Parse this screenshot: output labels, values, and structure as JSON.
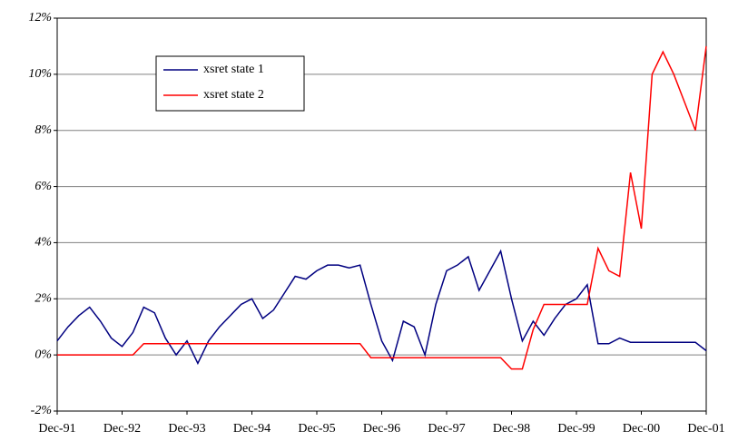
{
  "chart_data": {
    "type": "line",
    "categories": [
      "Dec-91",
      null,
      null,
      null,
      null,
      null,
      "Dec-92",
      null,
      null,
      null,
      null,
      null,
      "Dec-93",
      null,
      null,
      null,
      null,
      null,
      "Dec-94",
      null,
      null,
      null,
      null,
      null,
      "Dec-95",
      null,
      null,
      null,
      null,
      null,
      "Dec-96",
      null,
      null,
      null,
      null,
      null,
      "Dec-97",
      null,
      null,
      null,
      null,
      null,
      "Dec-98",
      null,
      null,
      null,
      null,
      null,
      "Dec-99",
      null,
      null,
      null,
      null,
      null,
      "Dec-00",
      null,
      null,
      null,
      null,
      null,
      "Dec-01"
    ],
    "series": [
      {
        "name": "xsret state 1",
        "color": "#000080",
        "values": [
          0.5,
          1.0,
          1.4,
          1.7,
          1.2,
          0.6,
          0.3,
          0.8,
          1.7,
          1.5,
          0.6,
          0.0,
          0.5,
          -0.3,
          0.5,
          1.0,
          1.4,
          1.8,
          2.0,
          1.3,
          1.6,
          2.2,
          2.8,
          2.7,
          3.0,
          3.2,
          3.2,
          3.1,
          3.2,
          1.8,
          0.5,
          -0.2,
          1.2,
          1.0,
          0.0,
          1.8,
          3.0,
          3.2,
          3.5,
          2.3,
          3.0,
          3.7,
          2.0,
          0.5,
          1.2,
          0.7,
          1.3,
          1.8,
          2.0,
          2.5,
          0.4,
          0.4,
          0.6,
          0.45,
          0.45,
          0.45,
          0.45,
          0.45,
          0.45,
          0.45,
          0.15
        ]
      },
      {
        "name": "xsret state 2",
        "color": "#ff0000",
        "values": [
          0,
          0,
          0,
          0,
          0,
          0,
          0,
          0,
          0.4,
          0.4,
          0.4,
          0.4,
          0.4,
          0.4,
          0.4,
          0.4,
          0.4,
          0.4,
          0.4,
          0.4,
          0.4,
          0.4,
          0.4,
          0.4,
          0.4,
          0.4,
          0.4,
          0.4,
          0.4,
          -0.1,
          -0.1,
          -0.1,
          -0.1,
          -0.1,
          -0.1,
          -0.1,
          -0.1,
          -0.1,
          -0.1,
          -0.1,
          -0.1,
          -0.1,
          -0.5,
          -0.5,
          0.9,
          1.8,
          1.8,
          1.8,
          1.8,
          1.8,
          3.8,
          3.0,
          2.8,
          6.5,
          4.5,
          10.0,
          10.8,
          10.0,
          9.0,
          8.0,
          11.0
        ]
      }
    ],
    "ylim": [
      -2,
      12
    ],
    "yticks": [
      {
        "value": -2,
        "label": "-2%"
      },
      {
        "value": 0,
        "label": "0%"
      },
      {
        "value": 2,
        "label": "2%"
      },
      {
        "value": 4,
        "label": "4%"
      },
      {
        "value": 6,
        "label": "6%"
      },
      {
        "value": 8,
        "label": "8%"
      },
      {
        "value": 10,
        "label": "10%"
      },
      {
        "value": 12,
        "label": "12%"
      }
    ],
    "grid": true,
    "legend": "upper-left"
  }
}
